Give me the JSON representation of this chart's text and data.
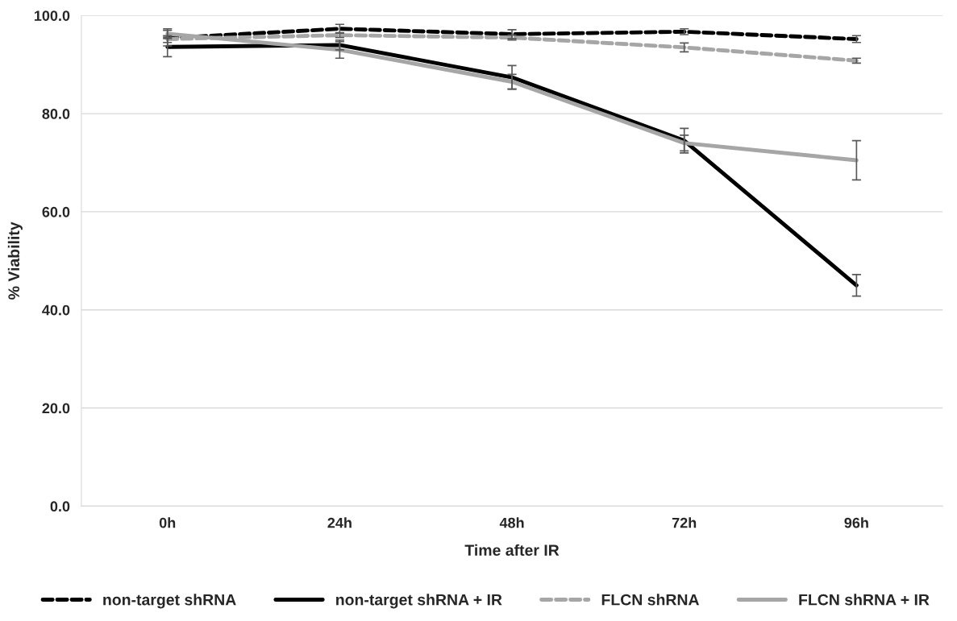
{
  "chart_data": {
    "type": "line",
    "xlabel": "Time after IR",
    "ylabel": "% Viability",
    "categories": [
      "0h",
      "24h",
      "48h",
      "72h",
      "96h"
    ],
    "ylim": [
      0,
      100
    ],
    "yticks": [
      {
        "value": 0,
        "label": "0.0"
      },
      {
        "value": 20,
        "label": "20.0"
      },
      {
        "value": 40,
        "label": "40.0"
      },
      {
        "value": 60,
        "label": "60.0"
      },
      {
        "value": 80,
        "label": "80.0"
      },
      {
        "value": 100,
        "label": "100.0"
      }
    ],
    "grid": "y",
    "legend": "bottom",
    "marker": "none",
    "series": [
      {
        "name": "non-target shRNA",
        "color": "#000000",
        "line_style": "dashed",
        "values": [
          95.4,
          97.3,
          96.2,
          96.7,
          95.2
        ],
        "errors": [
          1.6,
          0.9,
          0.9,
          0.6,
          0.7
        ]
      },
      {
        "name": "non-target shRNA + IR",
        "color": "#000000",
        "line_style": "solid",
        "values": [
          93.6,
          94.0,
          87.4,
          74.5,
          45.0
        ],
        "errors": [
          2.0,
          1.0,
          2.4,
          2.5,
          2.2
        ]
      },
      {
        "name": "FLCN shRNA",
        "color": "#a6a6a6",
        "line_style": "dashed",
        "values": [
          95.2,
          96.0,
          95.5,
          93.5,
          90.8
        ],
        "errors": [
          0.7,
          0.5,
          0.5,
          0.9,
          0.5
        ]
      },
      {
        "name": "FLCN shRNA + IR",
        "color": "#a6a6a6",
        "line_style": "solid",
        "values": [
          96.3,
          93.0,
          86.5,
          74.0,
          70.5
        ],
        "errors": [
          1.0,
          1.7,
          1.5,
          1.6,
          4.0
        ]
      }
    ]
  }
}
